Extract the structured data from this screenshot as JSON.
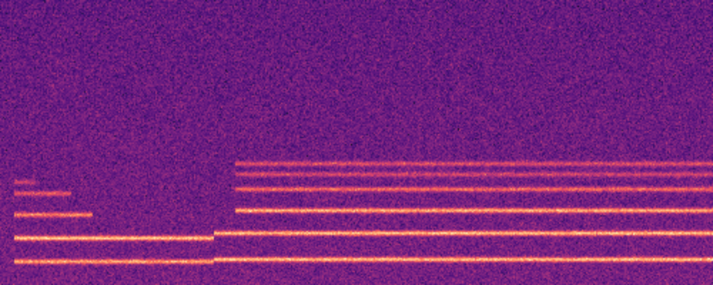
{
  "chart_data": {
    "type": "spectrogram",
    "xlim": [
      0,
      100
    ],
    "ylim": [
      0,
      100
    ],
    "tick_labels": false,
    "tracks": [
      {
        "start": 2,
        "end": 30,
        "frequency": 8,
        "level": 0.8
      },
      {
        "start": 2,
        "end": 30,
        "frequency": 16.25,
        "level": 0.95
      },
      {
        "start": 2,
        "end": 13,
        "frequency": 24.5,
        "level": 0.7
      },
      {
        "start": 2,
        "end": 10,
        "frequency": 32,
        "level": 0.5
      },
      {
        "start": 2,
        "end": 5,
        "frequency": 36,
        "level": 0.35
      },
      {
        "start": 30,
        "end": 100,
        "frequency": 8.75,
        "level": 0.9
      },
      {
        "start": 30,
        "end": 100,
        "frequency": 18,
        "level": 0.9
      },
      {
        "start": 33,
        "end": 100,
        "frequency": 26,
        "level": 0.85
      },
      {
        "start": 33,
        "end": 100,
        "frequency": 33.5,
        "level": 0.6
      },
      {
        "start": 33,
        "end": 100,
        "frequency": 38.75,
        "level": 0.4
      },
      {
        "start": 33,
        "end": 100,
        "frequency": 42.5,
        "level": 0.45
      }
    ]
  }
}
